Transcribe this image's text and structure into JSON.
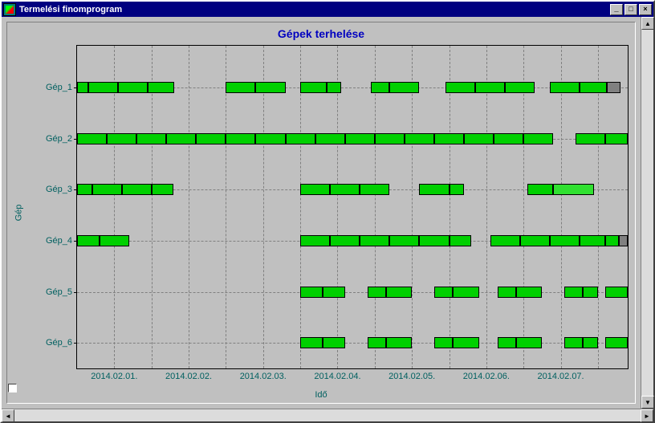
{
  "window": {
    "title": "Termelési finomprogram"
  },
  "chart": {
    "title": "Gépek terhelése",
    "y_axis_label": "Gép",
    "x_axis_label": "Idő",
    "title_color": "#0000c0",
    "axis_label_color": "#006060",
    "background_color": "#c0c0c0",
    "grid_color": "#808080",
    "bar_border_color": "#000000",
    "bar_fill_color": "#00d000",
    "bar_alt_color": "#808080",
    "plot_x_domain": [
      0,
      7.4
    ],
    "x_ticks": [
      {
        "pos": 0.5,
        "label": "2014.02.01."
      },
      {
        "pos": 1.5,
        "label": "2014.02.02."
      },
      {
        "pos": 2.5,
        "label": "2014.02.03."
      },
      {
        "pos": 3.5,
        "label": "2014.02.04."
      },
      {
        "pos": 4.5,
        "label": "2014.02.05."
      },
      {
        "pos": 5.5,
        "label": "2014.02.06."
      },
      {
        "pos": 6.5,
        "label": "2014.02.07."
      }
    ],
    "x_gridlines": [
      0.5,
      1.0,
      1.5,
      2.0,
      2.5,
      3.0,
      3.5,
      4.0,
      4.5,
      5.0,
      5.5,
      6.0,
      6.5,
      7.0
    ],
    "rows": [
      {
        "label": "Gép_1",
        "bars": [
          {
            "x0": 0.0,
            "x1": 0.15,
            "c": "g"
          },
          {
            "x0": 0.15,
            "x1": 0.55,
            "c": "g"
          },
          {
            "x0": 0.55,
            "x1": 0.95,
            "c": "g"
          },
          {
            "x0": 0.95,
            "x1": 1.3,
            "c": "g"
          },
          {
            "x0": 2.0,
            "x1": 2.4,
            "c": "g"
          },
          {
            "x0": 2.4,
            "x1": 2.8,
            "c": "g"
          },
          {
            "x0": 3.0,
            "x1": 3.35,
            "c": "g"
          },
          {
            "x0": 3.35,
            "x1": 3.55,
            "c": "g"
          },
          {
            "x0": 3.95,
            "x1": 4.2,
            "c": "g"
          },
          {
            "x0": 4.2,
            "x1": 4.6,
            "c": "g"
          },
          {
            "x0": 4.95,
            "x1": 5.35,
            "c": "g"
          },
          {
            "x0": 5.35,
            "x1": 5.75,
            "c": "g"
          },
          {
            "x0": 5.75,
            "x1": 6.15,
            "c": "g"
          },
          {
            "x0": 6.35,
            "x1": 6.75,
            "c": "g"
          },
          {
            "x0": 6.75,
            "x1": 7.12,
            "c": "g"
          },
          {
            "x0": 7.12,
            "x1": 7.3,
            "c": "a"
          }
        ]
      },
      {
        "label": "Gép_2",
        "bars": [
          {
            "x0": 0.0,
            "x1": 0.4,
            "c": "g"
          },
          {
            "x0": 0.4,
            "x1": 0.8,
            "c": "g"
          },
          {
            "x0": 0.8,
            "x1": 1.2,
            "c": "g"
          },
          {
            "x0": 1.2,
            "x1": 1.6,
            "c": "g"
          },
          {
            "x0": 1.6,
            "x1": 2.0,
            "c": "g"
          },
          {
            "x0": 2.0,
            "x1": 2.4,
            "c": "g"
          },
          {
            "x0": 2.4,
            "x1": 2.8,
            "c": "g"
          },
          {
            "x0": 2.8,
            "x1": 3.2,
            "c": "g"
          },
          {
            "x0": 3.2,
            "x1": 3.6,
            "c": "g"
          },
          {
            "x0": 3.6,
            "x1": 4.0,
            "c": "g"
          },
          {
            "x0": 4.0,
            "x1": 4.4,
            "c": "g"
          },
          {
            "x0": 4.4,
            "x1": 4.8,
            "c": "g"
          },
          {
            "x0": 4.8,
            "x1": 5.2,
            "c": "g"
          },
          {
            "x0": 5.2,
            "x1": 5.6,
            "c": "g"
          },
          {
            "x0": 5.6,
            "x1": 6.0,
            "c": "g"
          },
          {
            "x0": 6.0,
            "x1": 6.4,
            "c": "g"
          },
          {
            "x0": 6.7,
            "x1": 7.1,
            "c": "g"
          },
          {
            "x0": 7.1,
            "x1": 7.4,
            "c": "g"
          }
        ]
      },
      {
        "label": "Gép_3",
        "bars": [
          {
            "x0": 0.0,
            "x1": 0.2,
            "c": "g"
          },
          {
            "x0": 0.2,
            "x1": 0.6,
            "c": "g"
          },
          {
            "x0": 0.6,
            "x1": 1.0,
            "c": "g"
          },
          {
            "x0": 1.0,
            "x1": 1.3,
            "c": "g"
          },
          {
            "x0": 3.0,
            "x1": 3.4,
            "c": "g"
          },
          {
            "x0": 3.4,
            "x1": 3.8,
            "c": "g"
          },
          {
            "x0": 3.8,
            "x1": 4.2,
            "c": "g"
          },
          {
            "x0": 4.6,
            "x1": 5.0,
            "c": "g"
          },
          {
            "x0": 5.0,
            "x1": 5.2,
            "c": "g"
          },
          {
            "x0": 6.05,
            "x1": 6.4,
            "c": "g"
          },
          {
            "x0": 6.4,
            "x1": 6.95,
            "c": "gl"
          }
        ]
      },
      {
        "label": "Gép_4",
        "bars": [
          {
            "x0": 0.0,
            "x1": 0.3,
            "c": "g"
          },
          {
            "x0": 0.3,
            "x1": 0.7,
            "c": "g"
          },
          {
            "x0": 3.0,
            "x1": 3.4,
            "c": "g"
          },
          {
            "x0": 3.4,
            "x1": 3.8,
            "c": "g"
          },
          {
            "x0": 3.8,
            "x1": 4.2,
            "c": "g"
          },
          {
            "x0": 4.2,
            "x1": 4.6,
            "c": "g"
          },
          {
            "x0": 4.6,
            "x1": 5.0,
            "c": "g"
          },
          {
            "x0": 5.0,
            "x1": 5.3,
            "c": "g"
          },
          {
            "x0": 5.55,
            "x1": 5.95,
            "c": "g"
          },
          {
            "x0": 5.95,
            "x1": 6.35,
            "c": "g"
          },
          {
            "x0": 6.35,
            "x1": 6.75,
            "c": "g"
          },
          {
            "x0": 6.75,
            "x1": 7.1,
            "c": "g"
          },
          {
            "x0": 7.1,
            "x1": 7.28,
            "c": "g"
          },
          {
            "x0": 7.28,
            "x1": 7.4,
            "c": "a"
          }
        ]
      },
      {
        "label": "Gép_5",
        "bars": [
          {
            "x0": 3.0,
            "x1": 3.3,
            "c": "g"
          },
          {
            "x0": 3.3,
            "x1": 3.6,
            "c": "g"
          },
          {
            "x0": 3.9,
            "x1": 4.15,
            "c": "g"
          },
          {
            "x0": 4.15,
            "x1": 4.5,
            "c": "g"
          },
          {
            "x0": 4.8,
            "x1": 5.05,
            "c": "g"
          },
          {
            "x0": 5.05,
            "x1": 5.4,
            "c": "g"
          },
          {
            "x0": 5.65,
            "x1": 5.9,
            "c": "g"
          },
          {
            "x0": 5.9,
            "x1": 6.25,
            "c": "g"
          },
          {
            "x0": 6.55,
            "x1": 6.8,
            "c": "g"
          },
          {
            "x0": 6.8,
            "x1": 7.0,
            "c": "g"
          },
          {
            "x0": 7.1,
            "x1": 7.4,
            "c": "g"
          }
        ]
      },
      {
        "label": "Gép_6",
        "bars": [
          {
            "x0": 3.0,
            "x1": 3.3,
            "c": "g"
          },
          {
            "x0": 3.3,
            "x1": 3.6,
            "c": "g"
          },
          {
            "x0": 3.9,
            "x1": 4.15,
            "c": "g"
          },
          {
            "x0": 4.15,
            "x1": 4.5,
            "c": "g"
          },
          {
            "x0": 4.8,
            "x1": 5.05,
            "c": "g"
          },
          {
            "x0": 5.05,
            "x1": 5.4,
            "c": "g"
          },
          {
            "x0": 5.65,
            "x1": 5.9,
            "c": "g"
          },
          {
            "x0": 5.9,
            "x1": 6.25,
            "c": "g"
          },
          {
            "x0": 6.55,
            "x1": 6.8,
            "c": "g"
          },
          {
            "x0": 6.8,
            "x1": 7.0,
            "c": "g"
          },
          {
            "x0": 7.1,
            "x1": 7.4,
            "c": "g"
          }
        ]
      }
    ]
  }
}
